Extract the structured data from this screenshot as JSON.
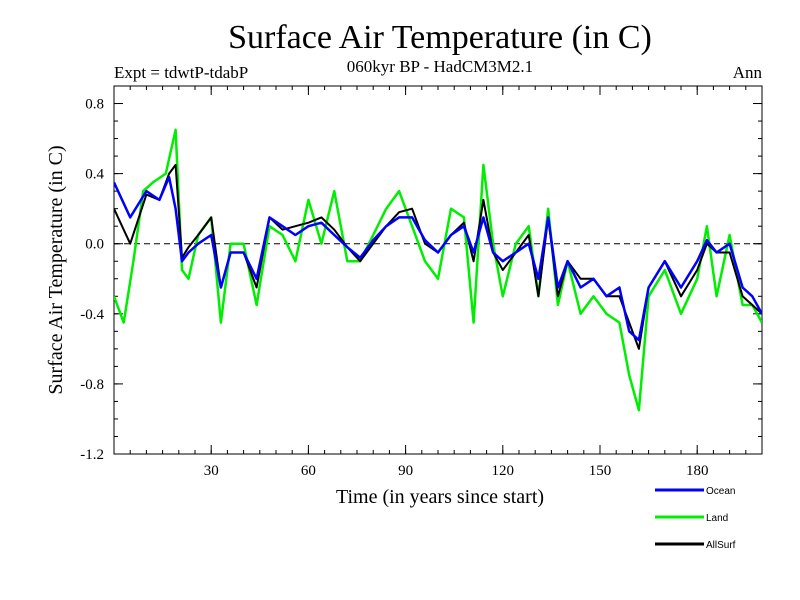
{
  "chart_data": {
    "type": "line",
    "title": "Surface Air Temperature (in C)",
    "subtitle": "060kyr BP - HadCM3M2.1",
    "expt_label": "Expt = tdwtP-tdabP",
    "season_label": "Ann",
    "xlabel": "Time (in years since start)",
    "ylabel": "Surface Air Temperature (in C)",
    "xlim": [
      0,
      200
    ],
    "ylim": [
      -1.2,
      0.9
    ],
    "x_ticks": [
      30,
      60,
      90,
      120,
      150,
      180
    ],
    "x_tick_labels": [
      "30",
      "60",
      "90",
      "120",
      "150",
      "180"
    ],
    "y_ticks": [
      0.8,
      0.4,
      0.0,
      -0.4,
      -0.8,
      -1.2
    ],
    "y_tick_labels": [
      "0.8",
      "0.4",
      "0.0",
      "-0.4",
      "-0.8",
      "-1.2"
    ],
    "zero_line": true,
    "legend_position": "bottom-right",
    "series": [
      {
        "name": "Ocean",
        "color": "#0000ff",
        "x": [
          0,
          5,
          10,
          14,
          17,
          19,
          21,
          23,
          26,
          30,
          33,
          36,
          40,
          44,
          48,
          52,
          56,
          60,
          64,
          68,
          72,
          76,
          80,
          84,
          88,
          92,
          96,
          100,
          104,
          108,
          111,
          114,
          117,
          120,
          124,
          128,
          131,
          134,
          137,
          140,
          144,
          148,
          152,
          156,
          159,
          162,
          165,
          170,
          175,
          180,
          183,
          186,
          190,
          194,
          197,
          200
        ],
        "values": [
          0.35,
          0.15,
          0.3,
          0.25,
          0.38,
          0.2,
          -0.1,
          -0.05,
          0.0,
          0.05,
          -0.25,
          -0.05,
          -0.05,
          -0.2,
          0.15,
          0.1,
          0.05,
          0.1,
          0.12,
          0.05,
          -0.02,
          -0.08,
          0.02,
          0.1,
          0.15,
          0.15,
          0.02,
          -0.05,
          0.05,
          0.1,
          -0.05,
          0.15,
          -0.05,
          -0.1,
          -0.05,
          0.0,
          -0.2,
          0.15,
          -0.25,
          -0.1,
          -0.25,
          -0.2,
          -0.3,
          -0.25,
          -0.5,
          -0.55,
          -0.25,
          -0.1,
          -0.25,
          -0.1,
          0.02,
          -0.05,
          0.0,
          -0.25,
          -0.3,
          -0.4
        ]
      },
      {
        "name": "Land",
        "color": "#00ee00",
        "x": [
          0,
          3,
          6,
          9,
          12,
          16,
          19,
          21,
          23,
          26,
          30,
          33,
          36,
          40,
          44,
          48,
          52,
          56,
          60,
          64,
          68,
          72,
          76,
          80,
          84,
          88,
          92,
          96,
          100,
          104,
          108,
          111,
          114,
          117,
          120,
          124,
          128,
          131,
          134,
          137,
          140,
          144,
          148,
          152,
          156,
          159,
          162,
          165,
          170,
          175,
          180,
          183,
          186,
          190,
          194,
          197,
          200
        ],
        "values": [
          -0.3,
          -0.45,
          -0.1,
          0.3,
          0.35,
          0.4,
          0.65,
          -0.15,
          -0.2,
          0.05,
          0.15,
          -0.45,
          0.0,
          0.0,
          -0.35,
          0.1,
          0.05,
          -0.1,
          0.25,
          0.0,
          0.3,
          -0.1,
          -0.1,
          0.05,
          0.2,
          0.3,
          0.1,
          -0.1,
          -0.2,
          0.2,
          0.15,
          -0.45,
          0.45,
          0.0,
          -0.3,
          0.0,
          0.1,
          -0.3,
          0.2,
          -0.35,
          -0.1,
          -0.4,
          -0.3,
          -0.4,
          -0.45,
          -0.75,
          -0.95,
          -0.3,
          -0.15,
          -0.4,
          -0.2,
          0.1,
          -0.3,
          0.05,
          -0.35,
          -0.35,
          -0.45
        ]
      },
      {
        "name": "AllSurf",
        "color": "#000000",
        "x": [
          0,
          5,
          10,
          14,
          17,
          19,
          21,
          23,
          26,
          30,
          33,
          36,
          40,
          44,
          48,
          52,
          56,
          60,
          64,
          68,
          72,
          76,
          80,
          84,
          88,
          92,
          96,
          100,
          104,
          108,
          111,
          114,
          117,
          120,
          124,
          128,
          131,
          134,
          137,
          140,
          144,
          148,
          152,
          156,
          159,
          162,
          165,
          170,
          175,
          180,
          183,
          186,
          190,
          194,
          197,
          200
        ],
        "values": [
          0.2,
          0.0,
          0.28,
          0.25,
          0.4,
          0.45,
          -0.08,
          -0.02,
          0.05,
          0.15,
          -0.25,
          -0.05,
          -0.05,
          -0.25,
          0.15,
          0.08,
          0.1,
          0.12,
          0.15,
          0.08,
          -0.02,
          -0.1,
          0.0,
          0.1,
          0.18,
          0.2,
          0.0,
          -0.05,
          0.05,
          0.12,
          -0.1,
          0.25,
          -0.05,
          -0.15,
          -0.05,
          0.05,
          -0.3,
          0.15,
          -0.3,
          -0.1,
          -0.2,
          -0.2,
          -0.3,
          -0.3,
          -0.45,
          -0.6,
          -0.25,
          -0.1,
          -0.3,
          -0.15,
          0.0,
          -0.05,
          -0.05,
          -0.3,
          -0.35,
          -0.4
        ]
      }
    ]
  }
}
